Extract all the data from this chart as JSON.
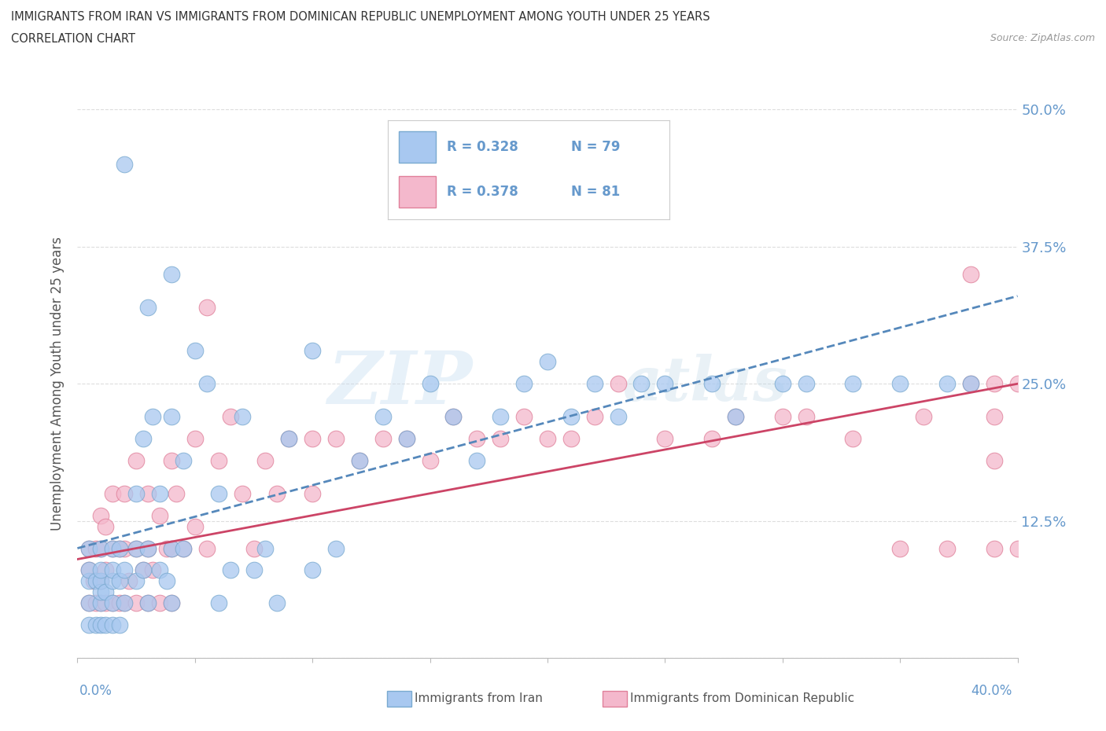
{
  "title_line1": "IMMIGRANTS FROM IRAN VS IMMIGRANTS FROM DOMINICAN REPUBLIC UNEMPLOYMENT AMONG YOUTH UNDER 25 YEARS",
  "title_line2": "CORRELATION CHART",
  "source_text": "Source: ZipAtlas.com",
  "ylabel": "Unemployment Among Youth under 25 years",
  "xmin": 0.0,
  "xmax": 0.4,
  "ymin": 0.0,
  "ymax": 0.5,
  "yticks": [
    0.0,
    0.125,
    0.25,
    0.375,
    0.5
  ],
  "ytick_labels_right": [
    "",
    "12.5%",
    "25.0%",
    "37.5%",
    "50.0%"
  ],
  "xticks": [
    0.0,
    0.05,
    0.1,
    0.15,
    0.2,
    0.25,
    0.3,
    0.35,
    0.4
  ],
  "legend1_R": "0.328",
  "legend1_N": "79",
  "legend2_R": "0.378",
  "legend2_N": "81",
  "watermark_zip": "ZIP",
  "watermark_atlas": "atlas",
  "color_iran": "#a8c8f0",
  "color_dr": "#f4b8cc",
  "color_iran_edge": "#7aaad0",
  "color_dr_edge": "#e0809a",
  "color_iran_line": "#5588bb",
  "color_dr_line": "#cc4466",
  "color_tick_labels": "#6699cc",
  "color_grid": "#dddddd",
  "iran_trend_x0": 0.0,
  "iran_trend_y0": 0.1,
  "iran_trend_x1": 0.4,
  "iran_trend_y1": 0.33,
  "dr_trend_x0": 0.0,
  "dr_trend_y0": 0.09,
  "dr_trend_x1": 0.4,
  "dr_trend_y1": 0.25,
  "iran_scatter_x": [
    0.005,
    0.005,
    0.005,
    0.005,
    0.005,
    0.008,
    0.008,
    0.01,
    0.01,
    0.01,
    0.01,
    0.01,
    0.01,
    0.012,
    0.012,
    0.015,
    0.015,
    0.015,
    0.015,
    0.015,
    0.018,
    0.018,
    0.018,
    0.02,
    0.02,
    0.02,
    0.025,
    0.025,
    0.025,
    0.028,
    0.028,
    0.03,
    0.03,
    0.03,
    0.032,
    0.035,
    0.035,
    0.038,
    0.04,
    0.04,
    0.04,
    0.04,
    0.045,
    0.045,
    0.05,
    0.055,
    0.06,
    0.06,
    0.065,
    0.07,
    0.075,
    0.08,
    0.085,
    0.09,
    0.1,
    0.1,
    0.11,
    0.12,
    0.13,
    0.14,
    0.15,
    0.16,
    0.17,
    0.18,
    0.19,
    0.2,
    0.21,
    0.22,
    0.23,
    0.24,
    0.25,
    0.27,
    0.28,
    0.3,
    0.31,
    0.33,
    0.35,
    0.37,
    0.38
  ],
  "iran_scatter_y": [
    0.03,
    0.05,
    0.07,
    0.08,
    0.1,
    0.03,
    0.07,
    0.03,
    0.05,
    0.06,
    0.07,
    0.08,
    0.1,
    0.03,
    0.06,
    0.03,
    0.05,
    0.07,
    0.08,
    0.1,
    0.03,
    0.07,
    0.1,
    0.05,
    0.08,
    0.45,
    0.07,
    0.1,
    0.15,
    0.08,
    0.2,
    0.05,
    0.1,
    0.32,
    0.22,
    0.08,
    0.15,
    0.07,
    0.05,
    0.1,
    0.22,
    0.35,
    0.1,
    0.18,
    0.28,
    0.25,
    0.05,
    0.15,
    0.08,
    0.22,
    0.08,
    0.1,
    0.05,
    0.2,
    0.08,
    0.28,
    0.1,
    0.18,
    0.22,
    0.2,
    0.25,
    0.22,
    0.18,
    0.22,
    0.25,
    0.27,
    0.22,
    0.25,
    0.22,
    0.25,
    0.25,
    0.25,
    0.22,
    0.25,
    0.25,
    0.25,
    0.25,
    0.25,
    0.25
  ],
  "dr_scatter_x": [
    0.005,
    0.005,
    0.005,
    0.007,
    0.008,
    0.008,
    0.01,
    0.01,
    0.01,
    0.01,
    0.012,
    0.012,
    0.012,
    0.015,
    0.015,
    0.015,
    0.018,
    0.018,
    0.02,
    0.02,
    0.02,
    0.022,
    0.025,
    0.025,
    0.025,
    0.028,
    0.03,
    0.03,
    0.03,
    0.032,
    0.035,
    0.035,
    0.038,
    0.04,
    0.04,
    0.04,
    0.042,
    0.045,
    0.05,
    0.05,
    0.055,
    0.055,
    0.06,
    0.065,
    0.07,
    0.075,
    0.08,
    0.085,
    0.09,
    0.1,
    0.1,
    0.11,
    0.12,
    0.13,
    0.14,
    0.15,
    0.16,
    0.17,
    0.18,
    0.19,
    0.2,
    0.21,
    0.22,
    0.23,
    0.25,
    0.27,
    0.28,
    0.3,
    0.31,
    0.33,
    0.35,
    0.36,
    0.37,
    0.38,
    0.38,
    0.39,
    0.39,
    0.39,
    0.39,
    0.4,
    0.4
  ],
  "dr_scatter_y": [
    0.05,
    0.08,
    0.1,
    0.07,
    0.05,
    0.1,
    0.05,
    0.07,
    0.1,
    0.13,
    0.05,
    0.08,
    0.12,
    0.05,
    0.1,
    0.15,
    0.05,
    0.1,
    0.05,
    0.1,
    0.15,
    0.07,
    0.05,
    0.1,
    0.18,
    0.08,
    0.05,
    0.1,
    0.15,
    0.08,
    0.05,
    0.13,
    0.1,
    0.05,
    0.1,
    0.18,
    0.15,
    0.1,
    0.12,
    0.2,
    0.1,
    0.32,
    0.18,
    0.22,
    0.15,
    0.1,
    0.18,
    0.15,
    0.2,
    0.15,
    0.2,
    0.2,
    0.18,
    0.2,
    0.2,
    0.18,
    0.22,
    0.2,
    0.2,
    0.22,
    0.2,
    0.2,
    0.22,
    0.25,
    0.2,
    0.2,
    0.22,
    0.22,
    0.22,
    0.2,
    0.1,
    0.22,
    0.1,
    0.25,
    0.35,
    0.1,
    0.18,
    0.22,
    0.25,
    0.1,
    0.25
  ]
}
